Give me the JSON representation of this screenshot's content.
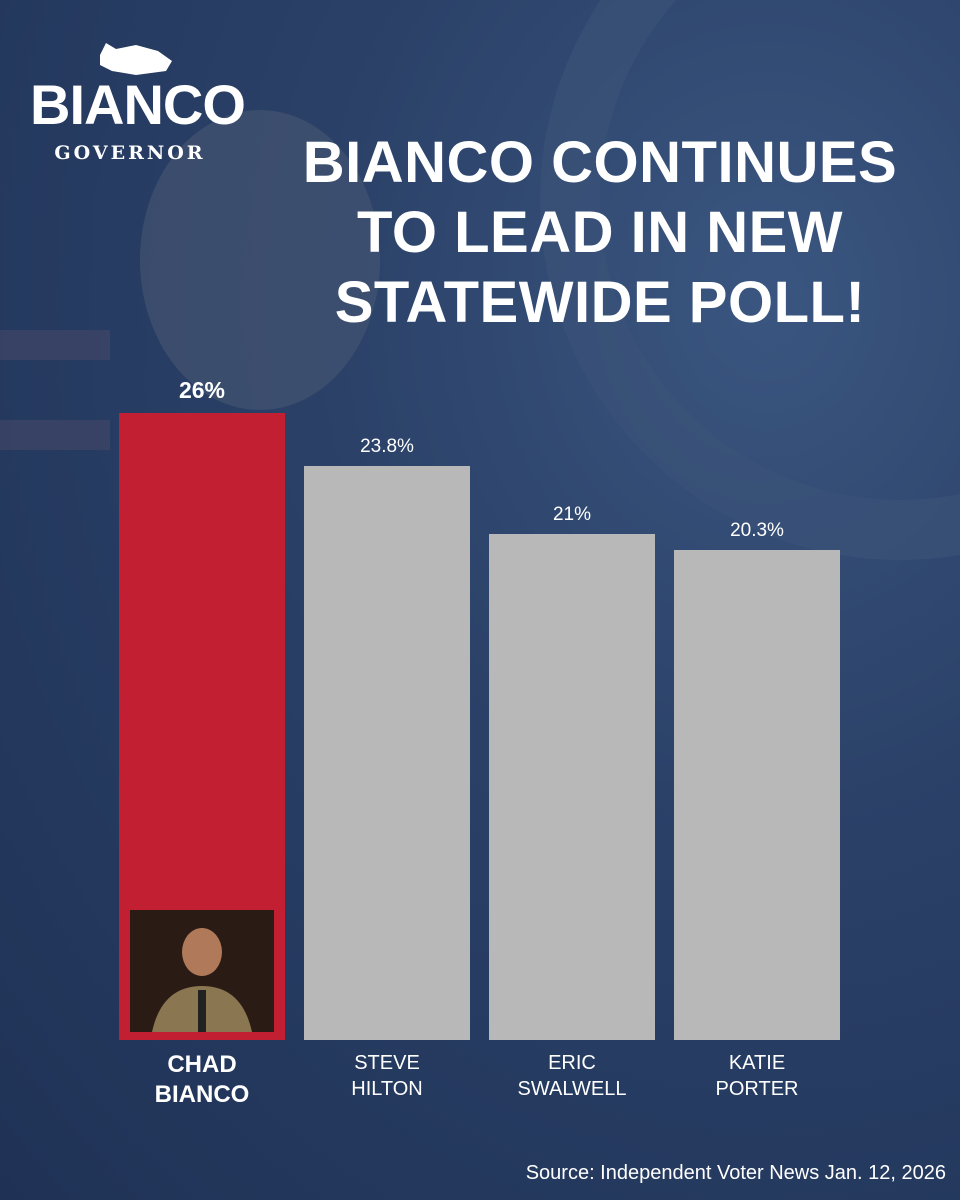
{
  "logo": {
    "name": "BIANCO",
    "subtitle": "GOVERNOR"
  },
  "chart_data": {
    "type": "bar",
    "title": "BIANCO CONTINUES TO LEAD IN NEW STATEWIDE POLL!",
    "categories": [
      "CHAD BIANCO",
      "STEVE HILTON",
      "ERIC SWALWELL",
      "KATIE PORTER"
    ],
    "values": [
      26,
      23.8,
      21,
      20.3
    ],
    "value_labels": [
      "26%",
      "23.8%",
      "21%",
      "20.3%"
    ],
    "colors": [
      "#c21f32",
      "#b8b8b8",
      "#b8b8b8",
      "#b8b8b8"
    ],
    "highlight": 0,
    "source": "Source: Independent Voter News Jan. 12, 2026"
  }
}
